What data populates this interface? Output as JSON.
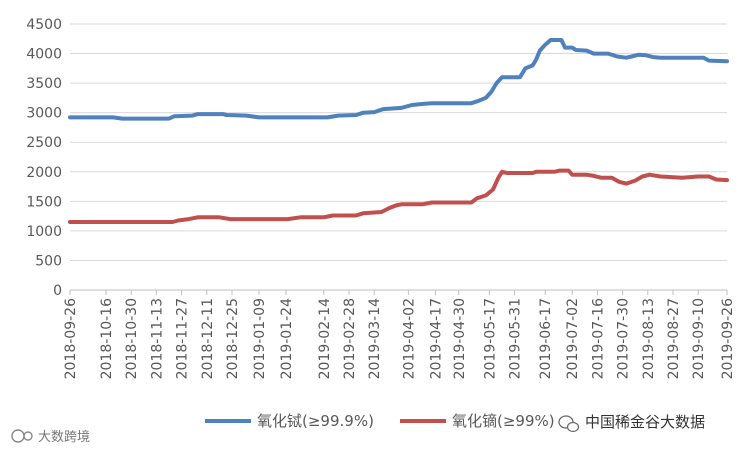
{
  "chart_data": {
    "type": "line",
    "title": "",
    "xlabel": "",
    "ylabel": "",
    "ylim": [
      0,
      4500
    ],
    "yticks": [
      0,
      500,
      1000,
      1500,
      2000,
      2500,
      3000,
      3500,
      4000,
      4500
    ],
    "grid": true,
    "legend_position": "bottom",
    "x_start": "2018-09-26",
    "x_end": "2019-09-26",
    "x_tick_labels": [
      "2018-09-26",
      "2018-10-16",
      "2018-10-30",
      "2018-11-13",
      "2018-11-27",
      "2018-12-11",
      "2018-12-25",
      "2019-01-09",
      "2019-01-24",
      "2019-02-14",
      "2019-02-28",
      "2019-03-14",
      "2019-04-02",
      "2019-04-17",
      "2019-04-30",
      "2019-05-17",
      "2019-05-31",
      "2019-06-17",
      "2019-07-02",
      "2019-07-16",
      "2019-07-30",
      "2019-08-13",
      "2019-08-27",
      "2019-09-10",
      "2019-09-26"
    ],
    "series": [
      {
        "name": "氧化铽(≥99.9%)",
        "color": "#4f81bd",
        "points": [
          [
            "2018-09-26",
            2920
          ],
          [
            "2018-10-20",
            2920
          ],
          [
            "2018-10-25",
            2900
          ],
          [
            "2018-11-20",
            2900
          ],
          [
            "2018-11-23",
            2940
          ],
          [
            "2018-12-03",
            2950
          ],
          [
            "2018-12-06",
            2975
          ],
          [
            "2018-12-20",
            2975
          ],
          [
            "2018-12-22",
            2960
          ],
          [
            "2019-01-02",
            2950
          ],
          [
            "2019-01-09",
            2920
          ],
          [
            "2019-02-16",
            2920
          ],
          [
            "2019-02-22",
            2950
          ],
          [
            "2019-03-04",
            2960
          ],
          [
            "2019-03-08",
            3000
          ],
          [
            "2019-03-14",
            3010
          ],
          [
            "2019-03-19",
            3060
          ],
          [
            "2019-03-29",
            3080
          ],
          [
            "2019-04-04",
            3130
          ],
          [
            "2019-04-11",
            3150
          ],
          [
            "2019-04-15",
            3160
          ],
          [
            "2019-05-07",
            3160
          ],
          [
            "2019-05-11",
            3200
          ],
          [
            "2019-05-15",
            3250
          ],
          [
            "2019-05-18",
            3350
          ],
          [
            "2019-05-21",
            3500
          ],
          [
            "2019-05-24",
            3600
          ],
          [
            "2019-06-03",
            3600
          ],
          [
            "2019-06-06",
            3750
          ],
          [
            "2019-06-10",
            3800
          ],
          [
            "2019-06-12",
            3900
          ],
          [
            "2019-06-14",
            4050
          ],
          [
            "2019-06-17",
            4150
          ],
          [
            "2019-06-20",
            4230
          ],
          [
            "2019-06-26",
            4230
          ],
          [
            "2019-06-28",
            4100
          ],
          [
            "2019-07-02",
            4100
          ],
          [
            "2019-07-04",
            4060
          ],
          [
            "2019-07-10",
            4050
          ],
          [
            "2019-07-14",
            4000
          ],
          [
            "2019-07-22",
            4000
          ],
          [
            "2019-07-27",
            3950
          ],
          [
            "2019-08-01",
            3930
          ],
          [
            "2019-08-04",
            3950
          ],
          [
            "2019-08-08",
            3980
          ],
          [
            "2019-08-12",
            3970
          ],
          [
            "2019-08-16",
            3940
          ],
          [
            "2019-08-20",
            3930
          ],
          [
            "2019-09-13",
            3930
          ],
          [
            "2019-09-16",
            3880
          ],
          [
            "2019-09-26",
            3870
          ]
        ]
      },
      {
        "name": "氧化镝(≥99%)",
        "color": "#c0504d",
        "points": [
          [
            "2018-09-26",
            1150
          ],
          [
            "2018-11-22",
            1150
          ],
          [
            "2018-11-25",
            1175
          ],
          [
            "2018-12-01",
            1200
          ],
          [
            "2018-12-06",
            1230
          ],
          [
            "2018-12-18",
            1230
          ],
          [
            "2018-12-24",
            1200
          ],
          [
            "2019-01-25",
            1200
          ],
          [
            "2019-02-01",
            1230
          ],
          [
            "2019-02-14",
            1230
          ],
          [
            "2019-02-19",
            1260
          ],
          [
            "2019-03-04",
            1260
          ],
          [
            "2019-03-08",
            1300
          ],
          [
            "2019-03-18",
            1320
          ],
          [
            "2019-03-22",
            1380
          ],
          [
            "2019-03-26",
            1430
          ],
          [
            "2019-03-29",
            1450
          ],
          [
            "2019-04-10",
            1450
          ],
          [
            "2019-04-15",
            1480
          ],
          [
            "2019-05-07",
            1480
          ],
          [
            "2019-05-10",
            1550
          ],
          [
            "2019-05-15",
            1600
          ],
          [
            "2019-05-19",
            1700
          ],
          [
            "2019-05-22",
            1900
          ],
          [
            "2019-05-24",
            2000
          ],
          [
            "2019-05-27",
            1980
          ],
          [
            "2019-06-10",
            1980
          ],
          [
            "2019-06-12",
            2000
          ],
          [
            "2019-06-22",
            2000
          ],
          [
            "2019-06-25",
            2020
          ],
          [
            "2019-06-30",
            2020
          ],
          [
            "2019-07-02",
            1950
          ],
          [
            "2019-07-10",
            1950
          ],
          [
            "2019-07-14",
            1930
          ],
          [
            "2019-07-18",
            1900
          ],
          [
            "2019-07-24",
            1900
          ],
          [
            "2019-07-28",
            1830
          ],
          [
            "2019-08-01",
            1800
          ],
          [
            "2019-08-06",
            1850
          ],
          [
            "2019-08-10",
            1920
          ],
          [
            "2019-08-14",
            1950
          ],
          [
            "2019-08-20",
            1920
          ],
          [
            "2019-09-01",
            1900
          ],
          [
            "2019-09-10",
            1920
          ],
          [
            "2019-09-16",
            1920
          ],
          [
            "2019-09-20",
            1870
          ],
          [
            "2019-09-26",
            1860
          ]
        ]
      }
    ]
  },
  "watermark_left": "大数跨境",
  "watermark_right": "中国稀金谷大数据"
}
